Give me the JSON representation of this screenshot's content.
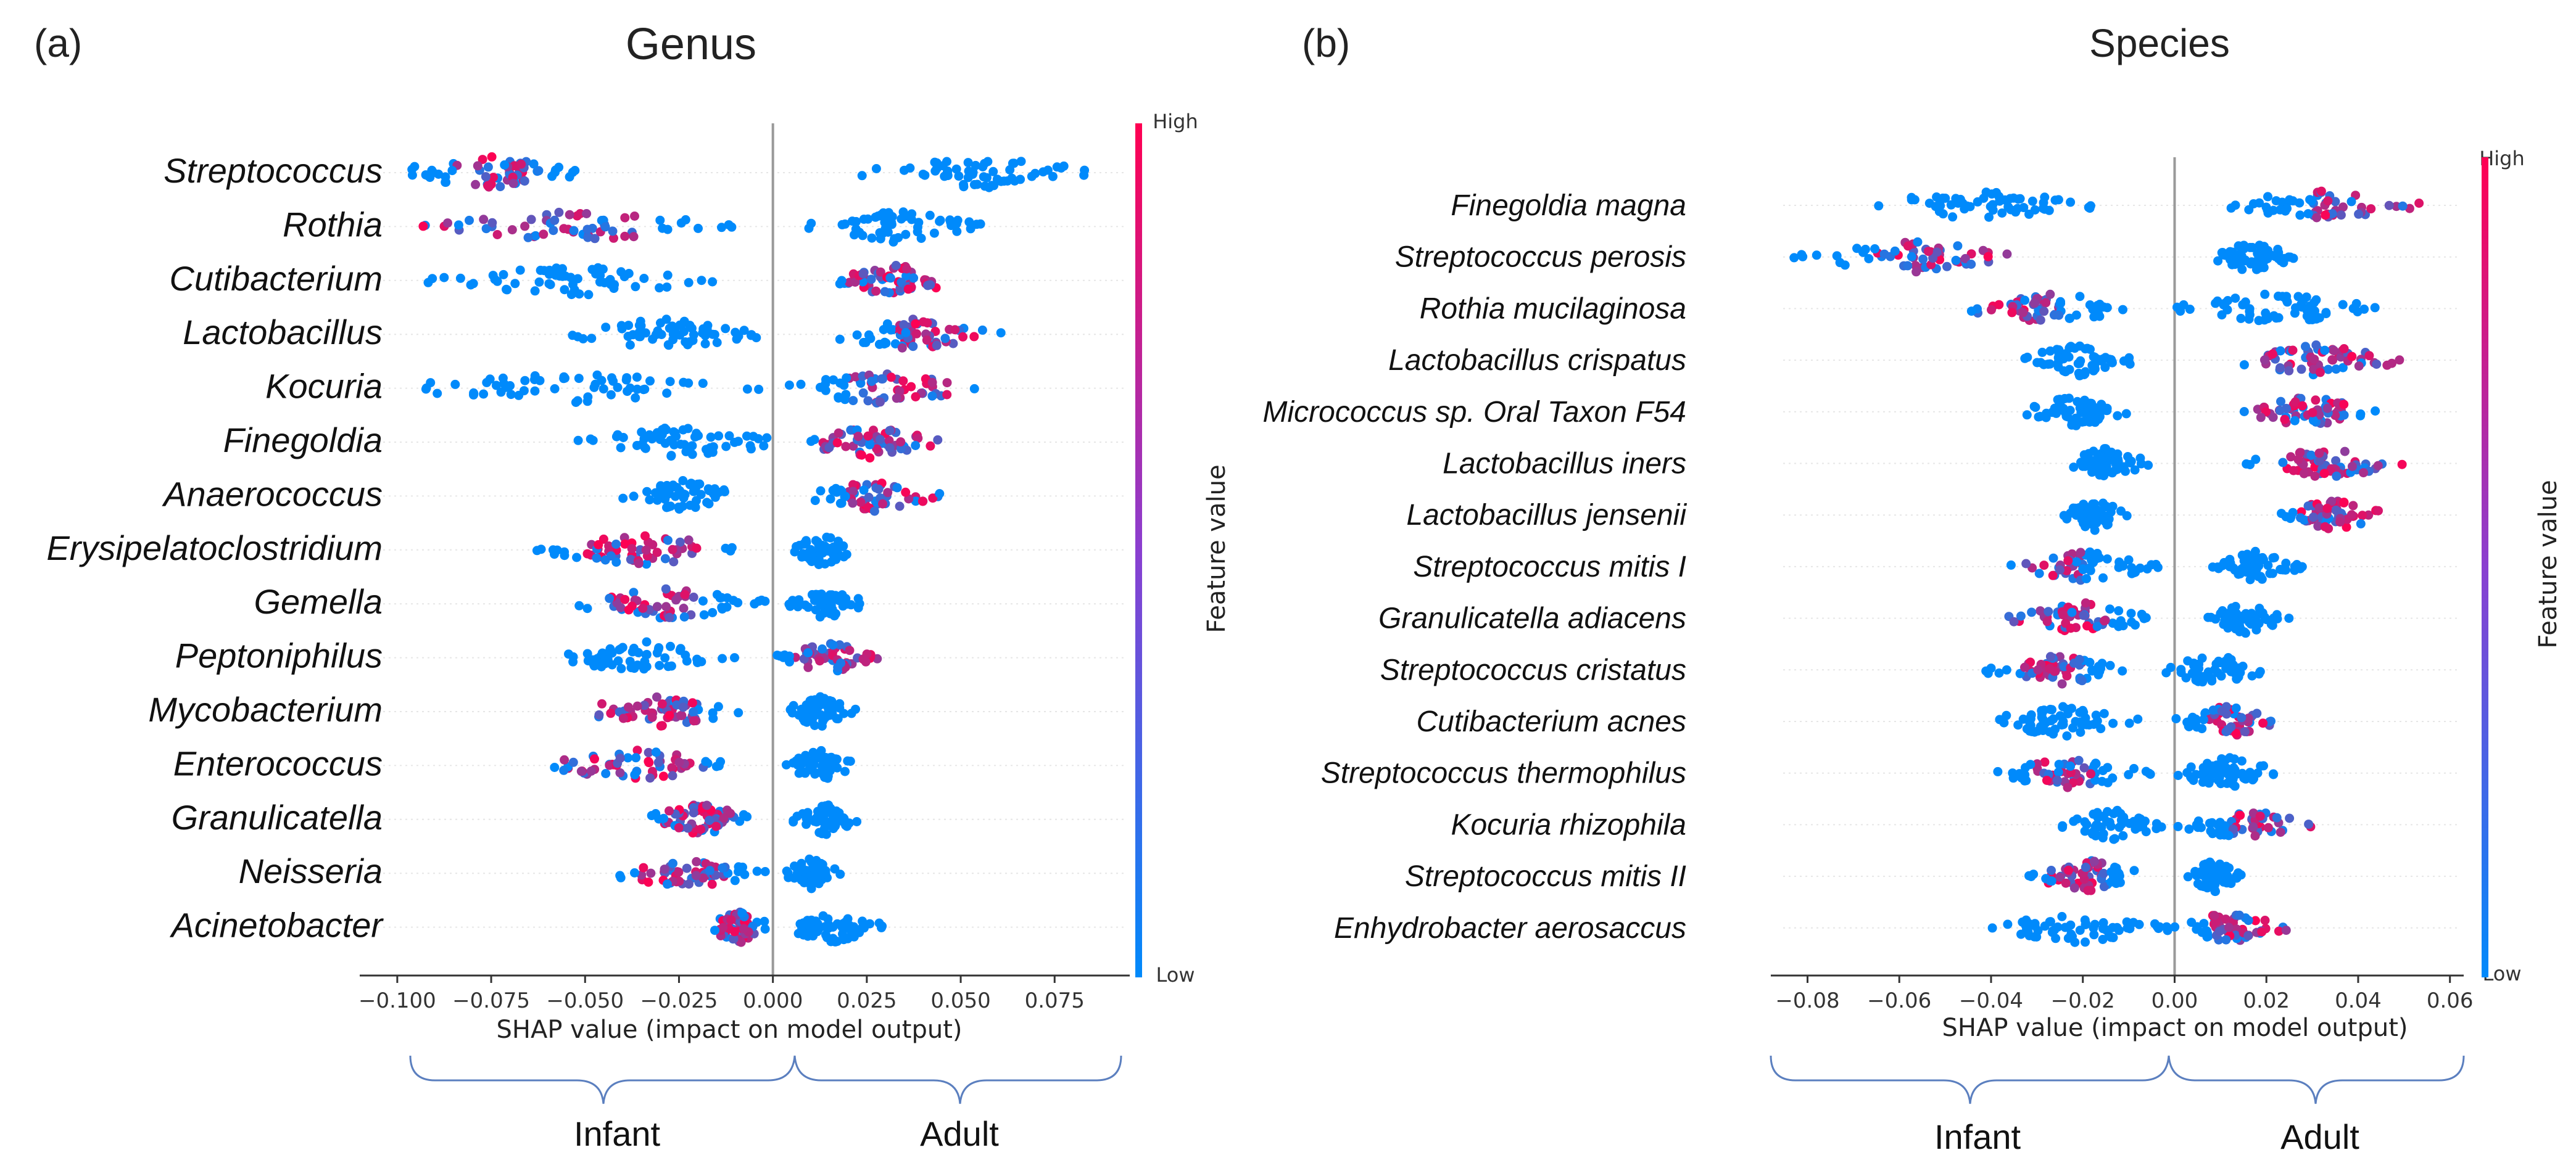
{
  "panels": [
    {
      "letter": "(a)",
      "title": "Genus",
      "axis_label": "SHAP value (impact on model output)",
      "colorbar": {
        "label": "Feature value",
        "high": "High",
        "low": "Low"
      },
      "groups": [
        "Infant",
        "Adult"
      ]
    },
    {
      "letter": "(b)",
      "title": "Species",
      "axis_label": "SHAP value (impact on model output)",
      "colorbar": {
        "label": "Feature value",
        "high": "High",
        "low": "Low"
      },
      "groups": [
        "Infant",
        "Adult"
      ]
    }
  ],
  "colors": {
    "low": "#1e88e5",
    "high": "#ff0d57",
    "zero_line": "#999999"
  },
  "chart_data": [
    {
      "type": "scatter",
      "subtype": "shap-beeswarm",
      "title": "Genus",
      "xlabel": "SHAP value (impact on model output)",
      "xlim": [
        -0.11,
        0.095
      ],
      "xticks": [
        -0.1,
        -0.075,
        -0.05,
        -0.025,
        0.0,
        0.025,
        0.05,
        0.075
      ],
      "xtick_labels": [
        "−0.100",
        "−0.075",
        "−0.050",
        "−0.025",
        "0.000",
        "0.025",
        "0.050",
        "0.075"
      ],
      "grid": false,
      "features": [
        {
          "name": "Streptococcus",
          "left": [
            -0.103,
            -0.047
          ],
          "left_high": [
            -0.085,
            -0.06
          ],
          "right": [
            0.022,
            0.088
          ],
          "right_high": null
        },
        {
          "name": "Rothia",
          "left": [
            -0.097,
            -0.006
          ],
          "left_high": [
            -0.095,
            -0.035
          ],
          "right": [
            0.008,
            0.058
          ],
          "right_high": null
        },
        {
          "name": "Cutibacterium",
          "left": [
            -0.092,
            -0.015
          ],
          "left_high": null,
          "right": [
            0.015,
            0.05
          ],
          "right_high": [
            0.02,
            0.05
          ]
        },
        {
          "name": "Lactobacillus",
          "left": [
            -0.057,
            -0.002
          ],
          "left_high": null,
          "right": [
            0.013,
            0.062
          ],
          "right_high": [
            0.033,
            0.06
          ]
        },
        {
          "name": "Kocuria",
          "left": [
            -0.106,
            0.0
          ],
          "left_high": null,
          "right": [
            0.002,
            0.055
          ],
          "right_high": [
            0.02,
            0.053
          ]
        },
        {
          "name": "Finegoldia",
          "left": [
            -0.052,
            0.003
          ],
          "left_high": null,
          "right": [
            0.007,
            0.045
          ],
          "right_high": [
            0.012,
            0.045
          ]
        },
        {
          "name": "Anaerococcus",
          "left": [
            -0.04,
            -0.008
          ],
          "left_high": null,
          "right": [
            0.007,
            0.045
          ],
          "right_high": [
            0.02,
            0.045
          ]
        },
        {
          "name": "Erysipelatoclostridium",
          "left": [
            -0.063,
            -0.007
          ],
          "left_high": [
            -0.05,
            -0.02
          ],
          "right": [
            0.004,
            0.022
          ],
          "right_high": null
        },
        {
          "name": "Gemella",
          "left": [
            -0.056,
            0.0
          ],
          "left_high": [
            -0.047,
            -0.02
          ],
          "right": [
            0.004,
            0.025
          ],
          "right_high": null
        },
        {
          "name": "Peptoniphilus",
          "left": [
            -0.058,
            -0.01
          ],
          "left_high": null,
          "right": [
            0.0,
            0.03
          ],
          "right_high": [
            0.005,
            0.03
          ]
        },
        {
          "name": "Mycobacterium",
          "left": [
            -0.057,
            -0.007
          ],
          "left_high": [
            -0.055,
            -0.02
          ],
          "right": [
            0.003,
            0.022
          ],
          "right_high": null
        },
        {
          "name": "Enterococcus",
          "left": [
            -0.062,
            -0.009
          ],
          "left_high": [
            -0.058,
            -0.018
          ],
          "right": [
            0.003,
            0.022
          ],
          "right_high": null
        },
        {
          "name": "Granulicatella",
          "left": [
            -0.035,
            -0.004
          ],
          "left_high": [
            -0.03,
            -0.01
          ],
          "right": [
            0.005,
            0.023
          ],
          "right_high": null
        },
        {
          "name": "Neisseria",
          "left": [
            -0.045,
            -0.002
          ],
          "left_high": [
            -0.035,
            -0.012
          ],
          "right": [
            0.003,
            0.018
          ],
          "right_high": null
        },
        {
          "name": "Acinetobacter",
          "left": [
            -0.018,
            0.0
          ],
          "left_high": [
            -0.015,
            -0.005
          ],
          "right": [
            0.002,
            0.03
          ],
          "right_high": null
        }
      ]
    },
    {
      "type": "scatter",
      "subtype": "shap-beeswarm",
      "title": "Species",
      "xlabel": "SHAP value (impact on model output)",
      "xlim": [
        -0.088,
        0.063
      ],
      "xticks": [
        -0.08,
        -0.06,
        -0.04,
        -0.02,
        0.0,
        0.02,
        0.04,
        0.06
      ],
      "xtick_labels": [
        "−0.08",
        "−0.06",
        "−0.04",
        "−0.02",
        "0.00",
        "0.02",
        "0.04",
        "0.06"
      ],
      "grid": false,
      "features": [
        {
          "name": "Finegoldia magna",
          "left": [
            -0.068,
            -0.017
          ],
          "left_high": null,
          "right": [
            0.01,
            0.054
          ],
          "right_high": [
            0.03,
            0.054
          ]
        },
        {
          "name": "Streptococcus perosis",
          "left": [
            -0.083,
            -0.03
          ],
          "left_high": [
            -0.065,
            -0.035
          ],
          "right": [
            0.008,
            0.026
          ],
          "right_high": null
        },
        {
          "name": "Rothia mucilaginosa",
          "left": [
            -0.046,
            -0.006
          ],
          "left_high": [
            -0.044,
            -0.025
          ],
          "right": [
            0.0,
            0.044
          ],
          "right_high": null
        },
        {
          "name": "Lactobacillus crispatus",
          "left": [
            -0.034,
            -0.008
          ],
          "left_high": null,
          "right": [
            0.012,
            0.05
          ],
          "right_high": [
            0.016,
            0.05
          ]
        },
        {
          "name": "Micrococcus sp. Oral Taxon F54",
          "left": [
            -0.034,
            -0.01
          ],
          "left_high": null,
          "right": [
            0.013,
            0.045
          ],
          "right_high": [
            0.015,
            0.04
          ]
        },
        {
          "name": "Lactobacillus iners",
          "left": [
            -0.025,
            -0.005
          ],
          "left_high": null,
          "right": [
            0.015,
            0.05
          ],
          "right_high": [
            0.02,
            0.05
          ]
        },
        {
          "name": "Lactobacillus jensenii",
          "left": [
            -0.025,
            -0.01
          ],
          "left_high": null,
          "right": [
            0.023,
            0.046
          ],
          "right_high": [
            0.026,
            0.046
          ]
        },
        {
          "name": "Streptococcus mitis I",
          "left": [
            -0.036,
            -0.003
          ],
          "left_high": [
            -0.035,
            -0.02
          ],
          "right": [
            0.008,
            0.028
          ],
          "right_high": null
        },
        {
          "name": "Granulicatella adiacens",
          "left": [
            -0.037,
            -0.003
          ],
          "left_high": [
            -0.037,
            -0.015
          ],
          "right": [
            0.006,
            0.025
          ],
          "right_high": null
        },
        {
          "name": "Streptococcus cristatus",
          "left": [
            -0.042,
            -0.01
          ],
          "left_high": [
            -0.033,
            -0.02
          ],
          "right": [
            -0.003,
            0.02
          ],
          "right_high": null
        },
        {
          "name": "Cutibacterium acnes",
          "left": [
            -0.041,
            -0.008
          ],
          "left_high": null,
          "right": [
            0.0,
            0.023
          ],
          "right_high": [
            0.007,
            0.023
          ]
        },
        {
          "name": "Streptococcus thermophilus",
          "left": [
            -0.04,
            -0.005
          ],
          "left_high": [
            -0.03,
            -0.018
          ],
          "right": [
            -0.001,
            0.024
          ],
          "right_high": null
        },
        {
          "name": "Kocuria rhizophila",
          "left": [
            -0.025,
            -0.002
          ],
          "left_high": null,
          "right": [
            0.0,
            0.03
          ],
          "right_high": [
            0.012,
            0.03
          ]
        },
        {
          "name": "Streptococcus mitis II",
          "left": [
            -0.032,
            -0.005
          ],
          "left_high": [
            -0.03,
            -0.015
          ],
          "right": [
            0.002,
            0.015
          ],
          "right_high": null
        },
        {
          "name": "Enhydrobacter aerosaccus",
          "left": [
            -0.04,
            -0.002
          ],
          "left_high": null,
          "right": [
            -0.002,
            0.025
          ],
          "right_high": [
            0.008,
            0.025
          ]
        }
      ]
    }
  ]
}
